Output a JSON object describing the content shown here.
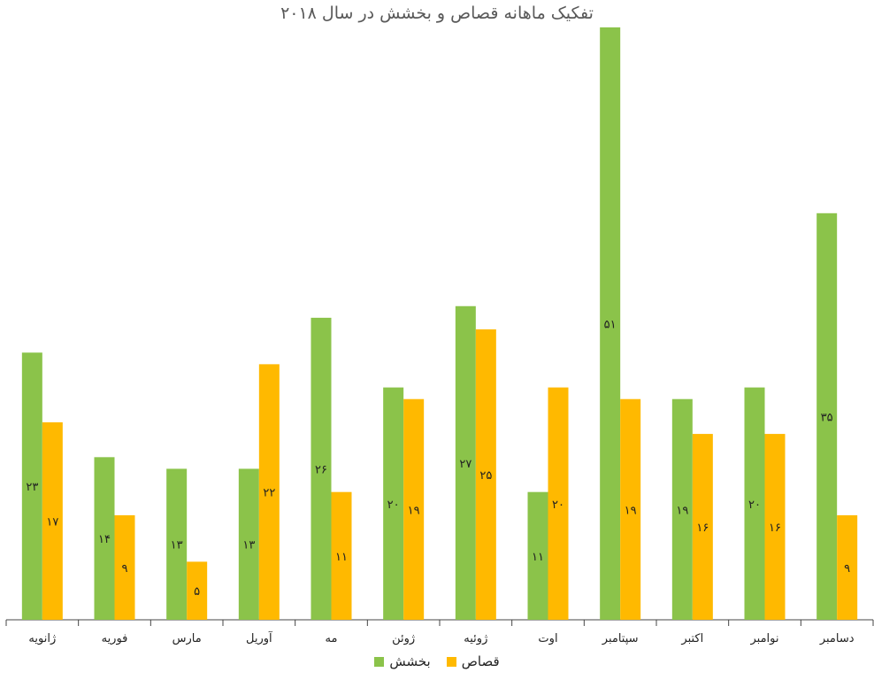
{
  "chart_data": {
    "type": "bar",
    "title": "تفکیک ماهانه قصاص و بخشش در سال ۲۰۱۸",
    "categories": [
      "ژانویه",
      "فوریه",
      "مارس",
      "آوریل",
      "مه",
      "ژوئن",
      "ژوئیه",
      "اوت",
      "سپتامبر",
      "اکتبر",
      "نوامبر",
      "دسامبر"
    ],
    "series": [
      {
        "name": "بخشش",
        "color": "#8BC34A",
        "values": [
          23,
          14,
          13,
          13,
          26,
          20,
          27,
          11,
          51,
          19,
          20,
          35
        ],
        "labels": [
          "۲۳",
          "۱۴",
          "۱۳",
          "۱۳",
          "۲۶",
          "۲۰",
          "۲۷",
          "۱۱",
          "۵۱",
          "۱۹",
          "۲۰",
          "۳۵"
        ]
      },
      {
        "name": "قصاص",
        "color": "#FFB900",
        "values": [
          17,
          9,
          5,
          22,
          11,
          19,
          25,
          20,
          19,
          16,
          16,
          9
        ],
        "labels": [
          "۱۷",
          "۹",
          "۵",
          "۲۲",
          "۱۱",
          "۱۹",
          "۲۵",
          "۲۰",
          "۱۹",
          "۱۶",
          "۱۶",
          "۹"
        ]
      }
    ],
    "ylim": [
      0,
      50
    ],
    "grid": false,
    "legend_position": "bottom"
  }
}
